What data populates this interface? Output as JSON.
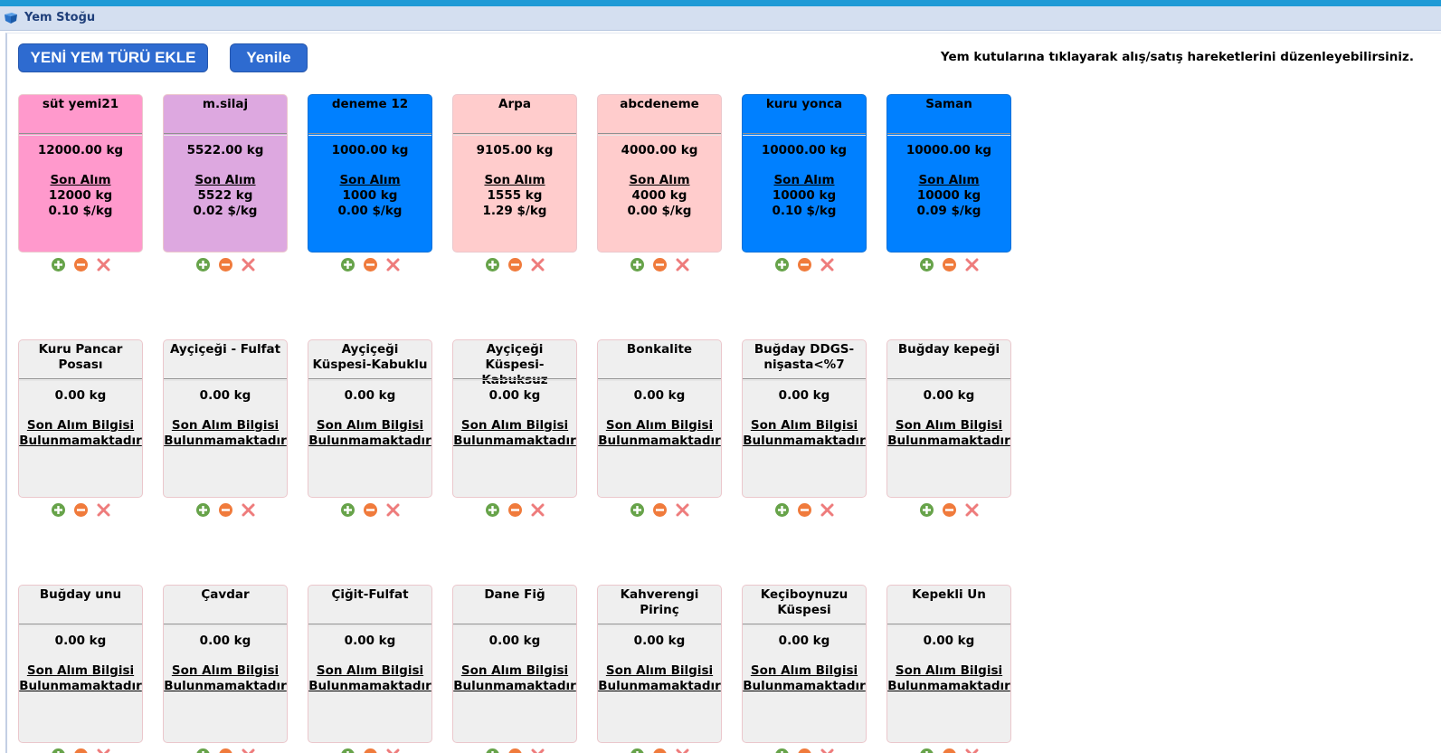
{
  "window": {
    "title": "Yem Stoğu"
  },
  "toolbar": {
    "add_label": "YENİ YEM TÜRÜ EKLE",
    "refresh_label": "Yenile",
    "hint": "Yem kutularına tıklayarak alış/satış hareketlerini düzenleyebilirsiniz."
  },
  "colors": {
    "pink": "#ff99cc",
    "violet": "#dda8e0",
    "blue": "#0080ff",
    "salmon": "#ffcccc",
    "gray": "#efefef",
    "add_icon": "#67a34a",
    "remove_icon": "#f07b3c",
    "delete_icon": "#ee7c7c"
  },
  "icons": {
    "title": "feed-icon",
    "add": "plus-circle-icon",
    "remove": "minus-circle-icon",
    "delete": "x-icon"
  },
  "feeds": [
    {
      "name": "süt yemi21",
      "qty": "12000.00 kg",
      "color": "pink",
      "last": {
        "label": "Son Alım",
        "kg": "12000 kg",
        "price": "0.10 $/kg"
      }
    },
    {
      "name": "m.silaj",
      "qty": "5522.00 kg",
      "color": "violet",
      "last": {
        "label": "Son Alım",
        "kg": "5522 kg",
        "price": "0.02 $/kg"
      }
    },
    {
      "name": "deneme 12",
      "qty": "1000.00 kg",
      "color": "blue",
      "last": {
        "label": "Son Alım",
        "kg": "1000 kg",
        "price": "0.00 $/kg"
      }
    },
    {
      "name": "Arpa",
      "qty": "9105.00 kg",
      "color": "salmon",
      "last": {
        "label": "Son Alım",
        "kg": "1555 kg",
        "price": "1.29 $/kg"
      }
    },
    {
      "name": "abcdeneme",
      "qty": "4000.00 kg",
      "color": "salmon",
      "last": {
        "label": "Son Alım",
        "kg": "4000 kg",
        "price": "0.00 $/kg"
      }
    },
    {
      "name": "kuru yonca",
      "qty": "10000.00 kg",
      "color": "blue",
      "last": {
        "label": "Son Alım",
        "kg": "10000 kg",
        "price": "0.10 $/kg"
      }
    },
    {
      "name": "Saman",
      "qty": "10000.00 kg",
      "color": "blue",
      "last": {
        "label": "Son Alım",
        "kg": "10000 kg",
        "price": "0.09 $/kg"
      }
    },
    {
      "name": "Kuru Pancar Posası",
      "qty": "0.00 kg",
      "color": "gray",
      "nolast": [
        "Son Alım Bilgisi",
        "Bulunmamaktadır"
      ]
    },
    {
      "name": "Ayçiçeği - Fulfat",
      "qty": "0.00 kg",
      "color": "gray",
      "nolast": [
        "Son Alım Bilgisi",
        "Bulunmamaktadır"
      ]
    },
    {
      "name": "Ayçiçeği Küspesi-Kabuklu",
      "qty": "0.00 kg",
      "color": "gray",
      "nolast": [
        "Son Alım Bilgisi",
        "Bulunmamaktadır"
      ]
    },
    {
      "name": "Ayçiçeği Küspesi-Kabuksuz",
      "qty": "0.00 kg",
      "color": "gray",
      "nolast": [
        "Son Alım Bilgisi",
        "Bulunmamaktadır"
      ]
    },
    {
      "name": "Bonkalite",
      "qty": "0.00 kg",
      "color": "gray",
      "nolast": [
        "Son Alım Bilgisi",
        "Bulunmamaktadır"
      ]
    },
    {
      "name": "Buğday DDGS-nişasta<%7",
      "qty": "0.00 kg",
      "color": "gray",
      "nolast": [
        "Son Alım Bilgisi",
        "Bulunmamaktadır"
      ]
    },
    {
      "name": "Buğday kepeği",
      "qty": "0.00 kg",
      "color": "gray",
      "nolast": [
        "Son Alım Bilgisi",
        "Bulunmamaktadır"
      ]
    },
    {
      "name": "Buğday unu",
      "qty": "0.00 kg",
      "color": "gray",
      "nolast": [
        "Son Alım Bilgisi",
        "Bulunmamaktadır"
      ]
    },
    {
      "name": "Çavdar",
      "qty": "0.00 kg",
      "color": "gray",
      "nolast": [
        "Son Alım Bilgisi",
        "Bulunmamaktadır"
      ]
    },
    {
      "name": "Çiğit-Fulfat",
      "qty": "0.00 kg",
      "color": "gray",
      "nolast": [
        "Son Alım Bilgisi",
        "Bulunmamaktadır"
      ]
    },
    {
      "name": "Dane Fiğ",
      "qty": "0.00 kg",
      "color": "gray",
      "nolast": [
        "Son Alım Bilgisi",
        "Bulunmamaktadır"
      ]
    },
    {
      "name": "Kahverengi Pirinç",
      "qty": "0.00 kg",
      "color": "gray",
      "nolast": [
        "Son Alım Bilgisi",
        "Bulunmamaktadır"
      ]
    },
    {
      "name": "Keçiboynuzu Küspesi",
      "qty": "0.00 kg",
      "color": "gray",
      "nolast": [
        "Son Alım Bilgisi",
        "Bulunmamaktadır"
      ]
    },
    {
      "name": "Kepekli Un",
      "qty": "0.00 kg",
      "color": "gray",
      "nolast": [
        "Son Alım Bilgisi",
        "Bulunmamaktadır"
      ]
    }
  ]
}
